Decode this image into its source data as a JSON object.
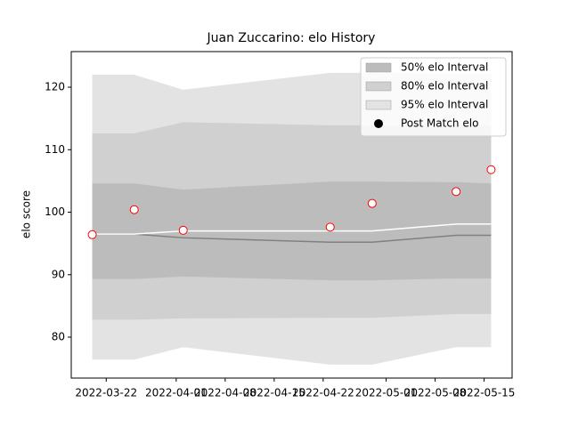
{
  "chart_data": {
    "type": "band_line",
    "title": "Juan Zuccarino: elo History",
    "ylabel": "elo score",
    "x": [
      "2022-03-20",
      "2022-03-26",
      "2022-04-02",
      "2022-04-23",
      "2022-04-29",
      "2022-05-11",
      "2022-05-16"
    ],
    "bands": [
      {
        "name": "95% elo Interval",
        "color": "#e3e3e3",
        "upper": [
          122,
          122,
          119.6,
          122.3,
          122.3,
          122.2,
          122.2
        ],
        "lower": [
          76.4,
          76.4,
          78.4,
          75.6,
          75.6,
          78.4,
          78.4
        ]
      },
      {
        "name": "80% elo Interval",
        "color": "#d0d0d0",
        "upper": [
          112.6,
          112.6,
          114.4,
          113.9,
          113.9,
          113.9,
          113.9
        ],
        "lower": [
          82.8,
          82.8,
          83,
          83.1,
          83.1,
          83.7,
          83.7
        ]
      },
      {
        "name": "50% elo Interval",
        "color": "#bcbcbc",
        "upper": [
          104.6,
          104.6,
          103.6,
          104.9,
          104.9,
          104.8,
          104.6
        ],
        "lower": [
          89.3,
          89.3,
          89.7,
          89.1,
          89.1,
          89.4,
          89.4
        ]
      }
    ],
    "lines": [
      {
        "color": "#808080",
        "values": [
          96.5,
          96.5,
          95.9,
          95.2,
          95.2,
          96.3,
          96.3
        ]
      },
      {
        "color": "#ffffff",
        "values": [
          96.5,
          96.5,
          97,
          97,
          97,
          98.1,
          98.1
        ]
      }
    ],
    "points": {
      "name": "Post Match elo",
      "color": "#ffffff",
      "edge_color": "#ff0000",
      "legend_color": "#000000",
      "values": [
        96.4,
        100.4,
        97.1,
        97.6,
        101.4,
        103.3,
        106.8
      ]
    },
    "xlim": [
      "2022-03-17",
      "2022-05-19"
    ],
    "xticks": [
      "2022-03-22",
      "2022-04-01",
      "2022-04-08",
      "2022-04-15",
      "2022-04-22",
      "2022-05-01",
      "2022-05-08",
      "2022-05-15"
    ],
    "ylim": [
      73.45,
      125.7
    ],
    "yticks": [
      80,
      90,
      100,
      110,
      120
    ],
    "legend": "upper right"
  }
}
